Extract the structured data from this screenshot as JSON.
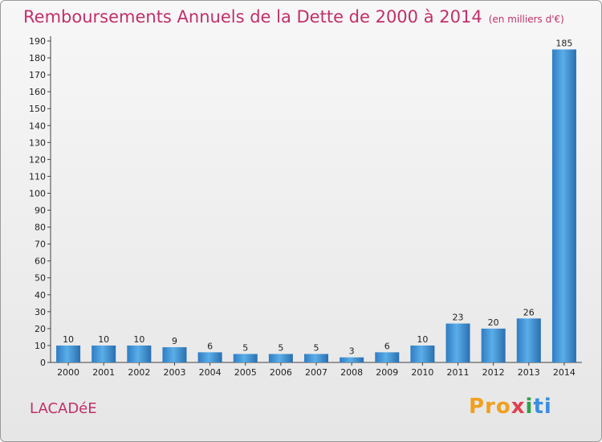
{
  "chart_data": {
    "type": "bar",
    "title": "Remboursements Annuels de la Dette de 2000 à 2014",
    "unit_note": "(en milliers d'€)",
    "xlabel": "",
    "ylabel": "",
    "categories": [
      "2000",
      "2001",
      "2002",
      "2003",
      "2004",
      "2005",
      "2006",
      "2007",
      "2008",
      "2009",
      "2010",
      "2011",
      "2012",
      "2013",
      "2014"
    ],
    "values": [
      10,
      10,
      10,
      9,
      6,
      5,
      5,
      5,
      3,
      6,
      10,
      23,
      20,
      26,
      185
    ],
    "ylim": [
      0,
      190
    ],
    "yticks": [
      0,
      10,
      20,
      30,
      40,
      50,
      60,
      70,
      80,
      90,
      100,
      110,
      120,
      130,
      140,
      150,
      160,
      170,
      180,
      190
    ],
    "grid": false,
    "bar_color": "#3a8fd8"
  },
  "footer": {
    "commune": "LACADéE",
    "logo_parts": [
      "Pro",
      "x",
      "i",
      "ti"
    ]
  }
}
